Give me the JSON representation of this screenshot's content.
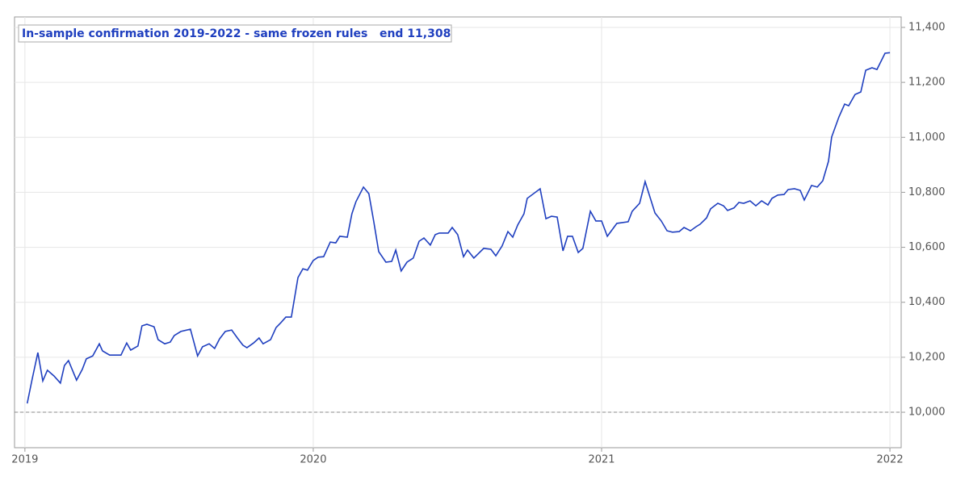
{
  "chart_data": {
    "type": "line",
    "title": "In-sample confirmation 2019-2022 - same frozen rules   end 11,308",
    "x": [
      2019.008,
      2019.025,
      2019.045,
      2019.062,
      2019.078,
      2019.101,
      2019.123,
      2019.137,
      2019.151,
      2019.179,
      2019.199,
      2019.213,
      2019.235,
      2019.258,
      2019.269,
      2019.294,
      2019.333,
      2019.353,
      2019.367,
      2019.392,
      2019.406,
      2019.423,
      2019.448,
      2019.462,
      2019.485,
      2019.504,
      2019.518,
      2019.541,
      2019.574,
      2019.599,
      2019.616,
      2019.639,
      2019.658,
      2019.675,
      2019.695,
      2019.717,
      2019.737,
      2019.756,
      2019.77,
      2019.793,
      2019.812,
      2019.826,
      2019.852,
      2019.871,
      2019.888,
      2019.905,
      2019.924,
      2019.947,
      2019.964,
      2019.98,
      2020.0,
      2020.017,
      2020.036,
      2020.059,
      2020.078,
      2020.092,
      2020.118,
      2020.134,
      2020.148,
      2020.174,
      2020.193,
      2020.21,
      2020.227,
      2020.252,
      2020.272,
      2020.286,
      2020.305,
      2020.325,
      2020.347,
      2020.367,
      2020.384,
      2020.406,
      2020.423,
      2020.437,
      2020.468,
      2020.482,
      2020.501,
      2020.521,
      2020.535,
      2020.557,
      2020.591,
      2020.616,
      2020.633,
      2020.655,
      2020.675,
      2020.692,
      2020.709,
      2020.731,
      2020.742,
      2020.787,
      2020.807,
      2020.826,
      2020.846,
      2020.866,
      2020.882,
      2020.899,
      2020.919,
      2020.935,
      2020.961,
      2020.98,
      2021.0,
      2021.02,
      2021.053,
      2021.092,
      2021.106,
      2021.132,
      2021.151,
      2021.185,
      2021.207,
      2021.227,
      2021.246,
      2021.269,
      2021.286,
      2021.308,
      2021.328,
      2021.342,
      2021.364,
      2021.378,
      2021.403,
      2021.423,
      2021.437,
      2021.459,
      2021.476,
      2021.493,
      2021.515,
      2021.535,
      2021.555,
      2021.577,
      2021.591,
      2021.611,
      2021.633,
      2021.647,
      2021.669,
      2021.689,
      2021.703,
      2021.728,
      2021.748,
      2021.767,
      2021.787,
      2021.798,
      2021.823,
      2021.843,
      2021.857,
      2021.879,
      2021.899,
      2021.916,
      2021.938,
      2021.955,
      2021.983,
      2022.0
    ],
    "series": [
      {
        "color": "#1f3fbf",
        "values": [
          10032,
          10120,
          10217,
          10114,
          10153,
          10132,
          10106,
          10170,
          10188,
          10117,
          10156,
          10194,
          10205,
          10249,
          10223,
          10208,
          10208,
          10252,
          10226,
          10241,
          10314,
          10320,
          10311,
          10264,
          10249,
          10255,
          10279,
          10294,
          10302,
          10205,
          10238,
          10249,
          10232,
          10267,
          10294,
          10299,
          10270,
          10244,
          10235,
          10252,
          10270,
          10249,
          10264,
          10308,
          10326,
          10346,
          10346,
          10490,
          10522,
          10517,
          10552,
          10564,
          10566,
          10619,
          10616,
          10640,
          10637,
          10722,
          10766,
          10819,
          10795,
          10693,
          10584,
          10546,
          10549,
          10590,
          10514,
          10546,
          10561,
          10622,
          10634,
          10608,
          10646,
          10652,
          10652,
          10672,
          10646,
          10566,
          10590,
          10561,
          10596,
          10593,
          10569,
          10605,
          10657,
          10637,
          10681,
          10722,
          10778,
          10813,
          10704,
          10713,
          10710,
          10587,
          10640,
          10640,
          10581,
          10596,
          10731,
          10696,
          10696,
          10640,
          10687,
          10693,
          10731,
          10760,
          10839,
          10725,
          10696,
          10660,
          10655,
          10657,
          10672,
          10660,
          10675,
          10684,
          10707,
          10740,
          10760,
          10751,
          10734,
          10743,
          10763,
          10760,
          10769,
          10751,
          10769,
          10754,
          10778,
          10790,
          10792,
          10810,
          10813,
          10807,
          10772,
          10825,
          10819,
          10842,
          10913,
          11001,
          11074,
          11121,
          11115,
          11156,
          11165,
          11244,
          11253,
          11247,
          11306,
          11308
        ]
      }
    ],
    "hline": 10000,
    "xlim": [
      2018.964,
      2022.039
    ],
    "ylim": [
      9871,
      11438
    ],
    "xticks": [
      2019,
      2020,
      2021,
      2022
    ],
    "yticks": [
      {
        "value": 10000,
        "label": "10,000"
      },
      {
        "value": 10200,
        "label": "10,200"
      },
      {
        "value": 10400,
        "label": "10,400"
      },
      {
        "value": 10600,
        "label": "10,600"
      },
      {
        "value": 10800,
        "label": "10,800"
      },
      {
        "value": 11000,
        "label": "11,000"
      },
      {
        "value": 11200,
        "label": "11,200"
      },
      {
        "value": 11400,
        "label": "11,400"
      }
    ],
    "grid": true
  }
}
